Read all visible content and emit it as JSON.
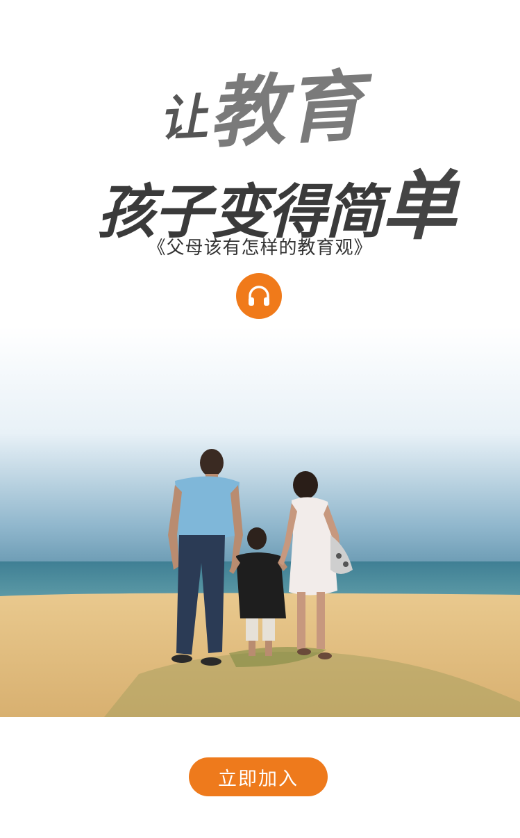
{
  "headline": {
    "line1_small": "让",
    "line1_main": "教育",
    "line2_main": "孩子变得简",
    "line2_big": "单"
  },
  "subtitle": "《父母该有怎样的教育观》",
  "audio": {
    "icon": "headphones-icon",
    "color": "#f07a1a"
  },
  "photo": {
    "scene": "family-walking-on-beach"
  },
  "cta": {
    "label": "立即加入",
    "color": "#ee7a1c"
  }
}
